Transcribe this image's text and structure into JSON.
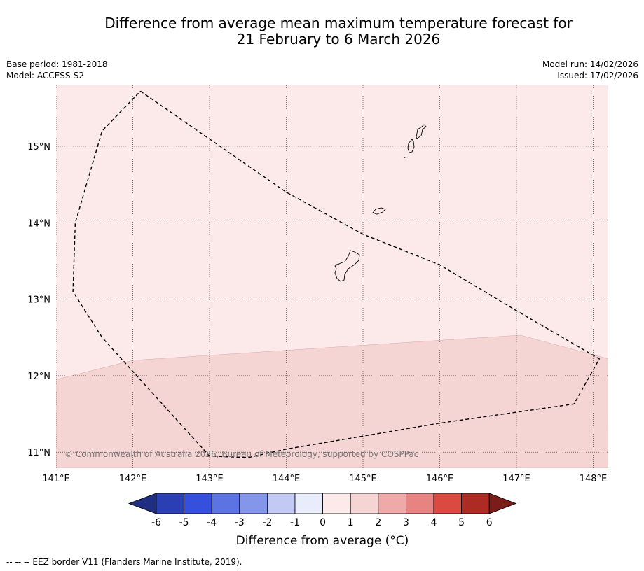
{
  "title": {
    "line1": "Difference from average mean maximum temperature forecast for",
    "line2": "21 February to 6 March 2026"
  },
  "meta": {
    "base_period": "Base period: 1981-2018",
    "model": "Model: ACCESS-S2",
    "model_run": "Model run: 14/02/2026",
    "issued": "Issued: 17/02/2026"
  },
  "map": {
    "lon_ticks": [
      "141°E",
      "142°E",
      "143°E",
      "144°E",
      "145°E",
      "146°E",
      "147°E",
      "148°E"
    ],
    "lat_ticks": [
      "15°N",
      "14°N",
      "13°N",
      "12°N",
      "11°N"
    ],
    "copyright": "© Commonwealth of Australia 2026, Bureau of Meteorology, supported by COSPPac",
    "fill_colors": {
      "band_0_1": "#fbeae9",
      "band_1_2": "#f5d5d3"
    },
    "anomaly_boundary_1C": {
      "lon": [
        141.0,
        142.0,
        145.5,
        147.05,
        148.2
      ],
      "lat": [
        11.95,
        12.2,
        12.43,
        12.53,
        12.22
      ]
    },
    "eez_border": {
      "lon": [
        142.1,
        144.0,
        145.0,
        146.0,
        147.0,
        148.08,
        147.75,
        146.0,
        144.0,
        143.5,
        143.0,
        141.6,
        141.22,
        141.25,
        141.6,
        142.1
      ],
      "lat": [
        15.72,
        14.4,
        13.85,
        13.45,
        12.85,
        12.22,
        11.63,
        11.38,
        11.04,
        10.93,
        10.95,
        12.5,
        13.1,
        14.0,
        15.2,
        15.72
      ]
    }
  },
  "colorbar": {
    "labels": [
      "-6",
      "-5",
      "-4",
      "-3",
      "-2",
      "-1",
      "0",
      "1",
      "2",
      "3",
      "4",
      "5",
      "6"
    ],
    "colors": [
      "#2b3fb4",
      "#3450dd",
      "#5b73e3",
      "#8496e9",
      "#c2c9f3",
      "#e9ecfb",
      "#fbeae9",
      "#f5d5d3",
      "#eeaaa8",
      "#e78481",
      "#db4a40",
      "#ae2b23"
    ],
    "under_color": "#1f2d82",
    "over_color": "#7a1d18",
    "title": "Difference from average (°C)"
  },
  "footnote": "--  --  -- EEZ border V11 (Flanders Marine Institute, 2019)."
}
